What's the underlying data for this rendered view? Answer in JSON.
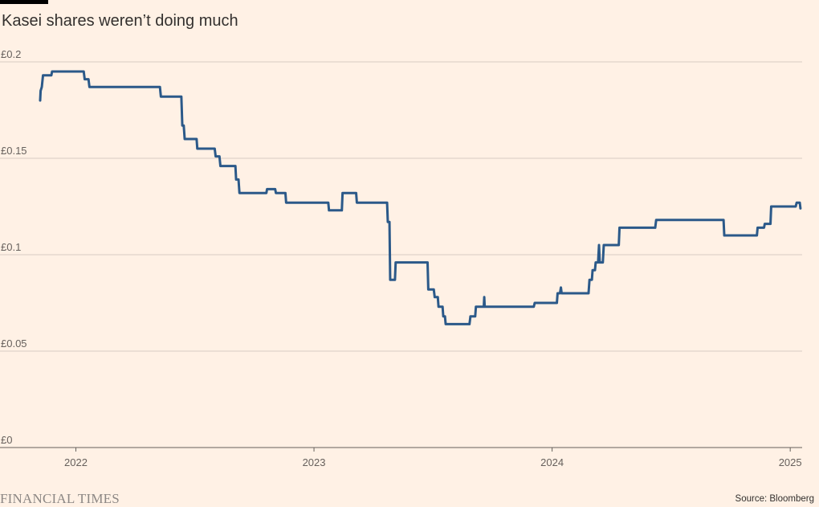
{
  "header": {
    "title": "Kasei shares weren’t doing much"
  },
  "footer": {
    "brand": "FINANCIAL TIMES",
    "source": "Source: Bloomberg"
  },
  "colors": {
    "line": "#2B5989",
    "grid": "#D7CCC4",
    "axis": "#66605C",
    "background": "#FFF1E5"
  },
  "chart_data": {
    "type": "line",
    "title": "Kasei shares weren’t doing much",
    "xlabel": "",
    "ylabel": "",
    "xlim": [
      2021.85,
      2025.05
    ],
    "ylim": [
      0,
      0.2
    ],
    "grid": true,
    "y_ticks": [
      {
        "value": 0,
        "label": "£0"
      },
      {
        "value": 0.05,
        "label": "£0.05"
      },
      {
        "value": 0.1,
        "label": "£0.1"
      },
      {
        "value": 0.15,
        "label": "£0.15"
      },
      {
        "value": 0.2,
        "label": "£0.2"
      }
    ],
    "x_ticks": [
      {
        "value": 2022,
        "label": "2022"
      },
      {
        "value": 2023,
        "label": "2023"
      },
      {
        "value": 2024,
        "label": "2024"
      },
      {
        "value": 2025,
        "label": "2025"
      }
    ],
    "series": [
      {
        "x": [
          2021.85,
          2021.852,
          2021.857,
          2021.862,
          2021.87,
          2021.897,
          2021.9,
          2021.91,
          2021.93,
          2022.033,
          2022.037,
          2022.053,
          2022.057,
          2022.07,
          2022.353,
          2022.357,
          2022.443,
          2022.447,
          2022.453,
          2022.457,
          2022.507,
          2022.51,
          2022.583,
          2022.587,
          2022.603,
          2022.607,
          2022.67,
          2022.673,
          2022.683,
          2022.687,
          2022.8,
          2022.803,
          2022.837,
          2022.84,
          2022.88,
          2022.883,
          2022.923,
          2022.927,
          2023.06,
          2023.063,
          2023.117,
          2023.12,
          2023.177,
          2023.18,
          2023.307,
          2023.31,
          2023.317,
          2023.32,
          2023.34,
          2023.343,
          2023.477,
          2023.48,
          2023.503,
          2023.507,
          2023.52,
          2023.523,
          2023.54,
          2023.543,
          2023.55,
          2023.553,
          2023.653,
          2023.657,
          2023.677,
          2023.68,
          2023.693,
          2023.697,
          2023.713,
          2023.715,
          2023.717,
          2023.72,
          2023.75,
          2023.923,
          2023.927,
          2024.02,
          2024.023,
          2024.033,
          2024.037,
          2024.04,
          2024.05,
          2024.053,
          2024.153,
          2024.157,
          2024.167,
          2024.17,
          2024.18,
          2024.183,
          2024.193,
          2024.197,
          2024.2,
          2024.203,
          2024.213,
          2024.217,
          2024.223,
          2024.227,
          2024.28,
          2024.283,
          2024.433,
          2024.437,
          2024.537,
          2024.54,
          2024.72,
          2024.723,
          2024.86,
          2024.863,
          2024.89,
          2024.893,
          2024.917,
          2024.92,
          2024.95,
          2024.953,
          2025.023,
          2025.027,
          2025.04,
          2025.043
        ],
        "values": [
          0.18,
          0.185,
          0.187,
          0.193,
          0.193,
          0.193,
          0.195,
          0.195,
          0.195,
          0.195,
          0.191,
          0.191,
          0.187,
          0.187,
          0.187,
          0.182,
          0.182,
          0.167,
          0.167,
          0.16,
          0.16,
          0.155,
          0.155,
          0.151,
          0.151,
          0.146,
          0.146,
          0.139,
          0.139,
          0.132,
          0.132,
          0.134,
          0.134,
          0.132,
          0.132,
          0.127,
          0.127,
          0.127,
          0.127,
          0.123,
          0.123,
          0.132,
          0.132,
          0.127,
          0.127,
          0.117,
          0.117,
          0.087,
          0.087,
          0.096,
          0.096,
          0.082,
          0.082,
          0.078,
          0.078,
          0.073,
          0.073,
          0.068,
          0.068,
          0.064,
          0.064,
          0.068,
          0.068,
          0.073,
          0.073,
          0.073,
          0.073,
          0.078,
          0.073,
          0.073,
          0.073,
          0.073,
          0.075,
          0.075,
          0.08,
          0.08,
          0.083,
          0.08,
          0.08,
          0.08,
          0.08,
          0.087,
          0.087,
          0.092,
          0.092,
          0.096,
          0.096,
          0.105,
          0.096,
          0.096,
          0.096,
          0.105,
          0.105,
          0.105,
          0.105,
          0.114,
          0.114,
          0.118,
          0.118,
          0.118,
          0.118,
          0.11,
          0.11,
          0.114,
          0.114,
          0.116,
          0.116,
          0.125,
          0.125,
          0.125,
          0.125,
          0.127,
          0.127,
          0.124
        ]
      }
    ]
  }
}
